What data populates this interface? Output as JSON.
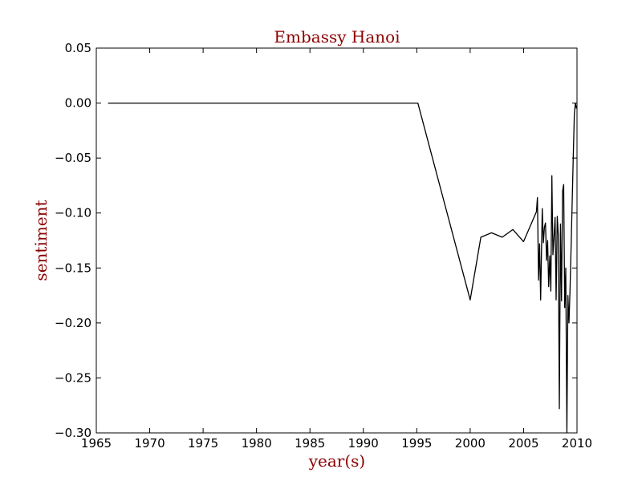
{
  "chart_data": {
    "type": "line",
    "title": "Embassy Hanoi",
    "xlabel": "year(s)",
    "ylabel": "sentiment",
    "xlim": [
      1965,
      2010
    ],
    "ylim": [
      -0.3,
      0.05
    ],
    "xticks": [
      1965,
      1970,
      1975,
      1980,
      1985,
      1990,
      1995,
      2000,
      2005,
      2010
    ],
    "xtick_labels": [
      "1965",
      "1970",
      "1975",
      "1980",
      "1985",
      "1990",
      "1995",
      "2000",
      "2005",
      "2010"
    ],
    "yticks": [
      0.05,
      0.0,
      -0.05,
      -0.1,
      -0.15,
      -0.2,
      -0.25,
      -0.3
    ],
    "ytick_labels": [
      "0.05",
      "0.00",
      "−0.05",
      "−0.10",
      "−0.15",
      "−0.20",
      "−0.25",
      "−0.30"
    ],
    "grid": false,
    "series": [
      {
        "name": "sentiment",
        "color": "#000000",
        "x": [
          1966.1,
          1995.1,
          2000.0,
          2001.0,
          2002.0,
          2003.0,
          2004.0,
          2005.0,
          2006.2,
          2006.3,
          2006.4,
          2006.5,
          2006.6,
          2006.75,
          2006.85,
          2006.95,
          2007.05,
          2007.15,
          2007.25,
          2007.35,
          2007.45,
          2007.55,
          2007.65,
          2007.75,
          2007.85,
          2007.95,
          2008.05,
          2008.15,
          2008.25,
          2008.35,
          2008.45,
          2008.55,
          2008.65,
          2008.75,
          2008.85,
          2008.95,
          2009.05,
          2009.15,
          2009.25,
          2009.35,
          2009.45,
          2009.55,
          2009.65,
          2009.75,
          2009.85,
          2009.95
        ],
        "y": [
          0.0,
          0.0,
          -0.179,
          -0.122,
          -0.118,
          -0.122,
          -0.115,
          -0.126,
          -0.099,
          -0.086,
          -0.161,
          -0.128,
          -0.179,
          -0.096,
          -0.127,
          -0.113,
          -0.109,
          -0.143,
          -0.125,
          -0.167,
          -0.139,
          -0.171,
          -0.066,
          -0.138,
          -0.121,
          -0.104,
          -0.179,
          -0.103,
          -0.12,
          -0.278,
          -0.11,
          -0.18,
          -0.08,
          -0.074,
          -0.186,
          -0.15,
          -0.3,
          -0.175,
          -0.2,
          -0.17,
          -0.13,
          -0.09,
          -0.05,
          -0.01,
          0.0,
          -0.005
        ]
      }
    ]
  }
}
